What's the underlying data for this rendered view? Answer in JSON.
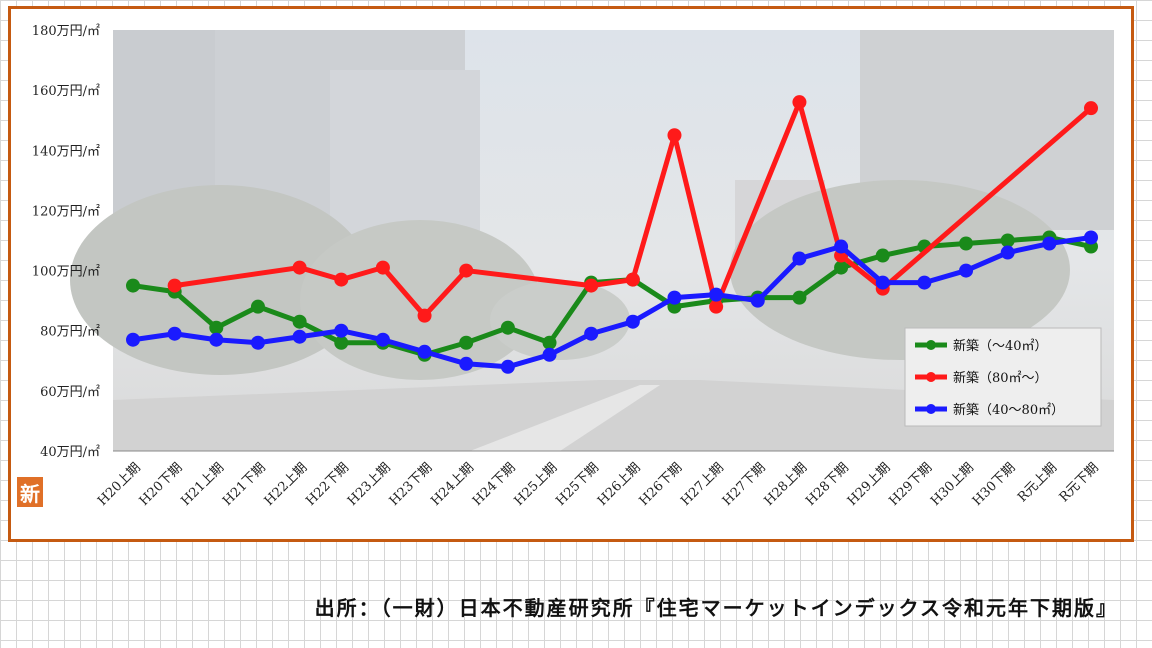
{
  "chart_data": {
    "type": "line",
    "categories": [
      "H20上期",
      "H20下期",
      "H21上期",
      "H21下期",
      "H22上期",
      "H22下期",
      "H23上期",
      "H23下期",
      "H24上期",
      "H24下期",
      "H25上期",
      "H25下期",
      "H26上期",
      "H26下期",
      "H27上期",
      "H27下期",
      "H28上期",
      "H28下期",
      "H29上期",
      "H29下期",
      "H30上期",
      "H30下期",
      "R元上期",
      "R元下期"
    ],
    "y_ticks": [
      "40万円/㎡",
      "60万円/㎡",
      "80万円/㎡",
      "100万円/㎡",
      "120万円/㎡",
      "140万円/㎡",
      "160万円/㎡",
      "180万円/㎡"
    ],
    "ylim": [
      40,
      180
    ],
    "grid": false,
    "legend_position": "right",
    "series": [
      {
        "name": "新築（～40㎡）",
        "color": "#1a8a1a",
        "values": [
          95,
          93,
          81,
          88,
          83,
          76,
          76,
          72,
          76,
          81,
          76,
          96,
          97,
          88,
          90,
          91,
          91,
          101,
          105,
          108,
          109,
          110,
          111,
          108
        ]
      },
      {
        "name": "新築（80㎡～）",
        "color": "#ff1a1a",
        "values": [
          null,
          95,
          null,
          null,
          101,
          97,
          101,
          85,
          100,
          null,
          null,
          95,
          97,
          145,
          88,
          null,
          156,
          105,
          94,
          null,
          null,
          null,
          null,
          154
        ]
      },
      {
        "name": "新築（40～80㎡）",
        "color": "#1a1aff",
        "values": [
          77,
          79,
          77,
          76,
          78,
          80,
          77,
          73,
          69,
          68,
          72,
          79,
          83,
          91,
          92,
          90,
          104,
          108,
          96,
          96,
          100,
          106,
          109,
          111
        ]
      }
    ]
  },
  "logo_text": "新",
  "source": "出所：（一財）日本不動産研究所『住宅マーケットインデックス令和元年下期版』"
}
